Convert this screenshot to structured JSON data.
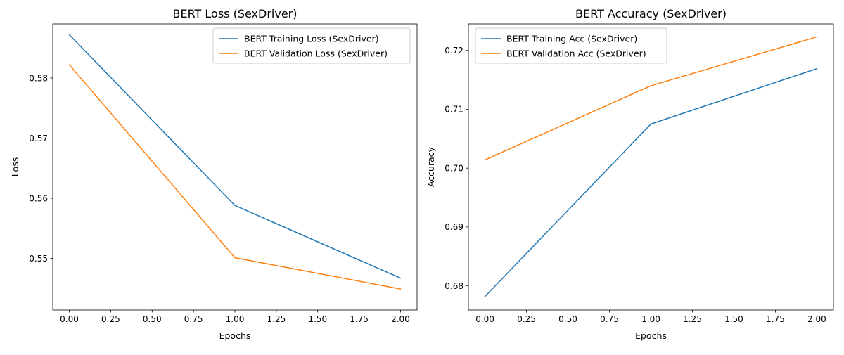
{
  "colors": {
    "training": "#1f77b4",
    "validation": "#ff7f0e"
  },
  "chart_data": [
    {
      "type": "line",
      "title": "BERT Loss (SexDriver)",
      "xlabel": "Epochs",
      "ylabel": "Loss",
      "x": [
        0,
        1,
        2
      ],
      "xlim": [
        -0.1,
        2.1
      ],
      "ylim": [
        0.5414,
        0.589
      ],
      "xticks": [
        0.0,
        0.25,
        0.5,
        0.75,
        1.0,
        1.25,
        1.5,
        1.75,
        2.0
      ],
      "xtick_labels": [
        "0.00",
        "0.25",
        "0.50",
        "0.75",
        "1.00",
        "1.25",
        "1.50",
        "1.75",
        "2.00"
      ],
      "yticks": [
        0.55,
        0.56,
        0.57,
        0.58
      ],
      "ytick_labels": [
        "0.55",
        "0.56",
        "0.57",
        "0.58"
      ],
      "grid": false,
      "legend_position": "top-right",
      "series": [
        {
          "name": "BERT Training Loss (SexDriver)",
          "color": "#1f77b4",
          "values": [
            0.5872,
            0.5588,
            0.5467
          ]
        },
        {
          "name": "BERT Validation Loss (SexDriver)",
          "color": "#ff7f0e",
          "values": [
            0.5822,
            0.5501,
            0.5449
          ]
        }
      ]
    },
    {
      "type": "line",
      "title": "BERT Accuracy (SexDriver)",
      "xlabel": "Epochs",
      "ylabel": "Accuracy",
      "x": [
        0,
        1,
        2
      ],
      "xlim": [
        -0.1,
        2.1
      ],
      "ylim": [
        0.6759,
        0.7245
      ],
      "xticks": [
        0.0,
        0.25,
        0.5,
        0.75,
        1.0,
        1.25,
        1.5,
        1.75,
        2.0
      ],
      "xtick_labels": [
        "0.00",
        "0.25",
        "0.50",
        "0.75",
        "1.00",
        "1.25",
        "1.50",
        "1.75",
        "2.00"
      ],
      "yticks": [
        0.68,
        0.69,
        0.7,
        0.71,
        0.72
      ],
      "ytick_labels": [
        "0.68",
        "0.69",
        "0.70",
        "0.71",
        "0.72"
      ],
      "grid": false,
      "legend_position": "top-left",
      "series": [
        {
          "name": "BERT Training Acc (SexDriver)",
          "color": "#1f77b4",
          "values": [
            0.6782,
            0.7075,
            0.7169
          ]
        },
        {
          "name": "BERT Validation Acc (SexDriver)",
          "color": "#ff7f0e",
          "values": [
            0.7014,
            0.714,
            0.7223
          ]
        }
      ]
    }
  ]
}
